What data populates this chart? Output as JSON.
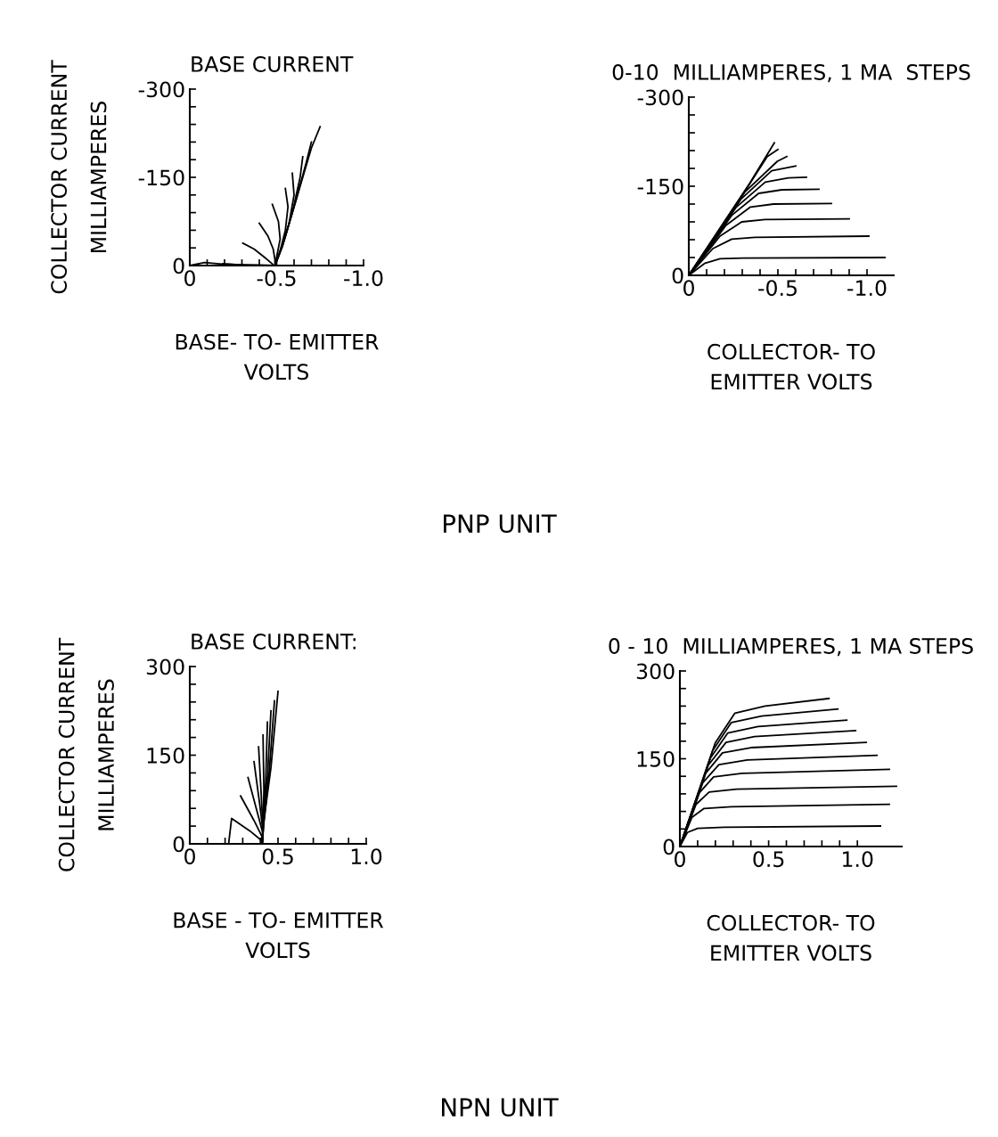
{
  "chart_data": [
    {
      "type": "line",
      "title": "BASE CURRENT",
      "xlabel": "BASE- TO- EMITTER\nVOLTS",
      "ylabel": "COLLECTOR CURRENT\nMILLIAMPERES",
      "annotations": [
        "PNP UNIT"
      ],
      "xlim": [
        0,
        -1
      ],
      "ylim": [
        0,
        -300
      ],
      "xticks": [
        0,
        {
          "value": -0.1,
          "label": null
        },
        {
          "value": -0.2,
          "label": null
        },
        {
          "value": -0.3,
          "label": null
        },
        {
          "value": -0.4,
          "label": null
        },
        -0.5,
        {
          "value": -0.6,
          "label": null
        },
        {
          "value": -0.7,
          "label": null
        },
        {
          "value": -0.8,
          "label": null
        },
        {
          "value": -0.9,
          "label": null
        },
        {
          "value": -1,
          "label": "-1.0"
        }
      ],
      "yticks": [
        0,
        {
          "value": -30,
          "label": null
        },
        {
          "value": -60,
          "label": null
        },
        {
          "value": -90,
          "label": null
        },
        {
          "value": -120,
          "label": null
        },
        -150,
        {
          "value": -180,
          "label": null
        },
        {
          "value": -210,
          "label": null
        },
        {
          "value": -240,
          "label": null
        },
        {
          "value": -270,
          "label": null
        },
        -300
      ],
      "marker": "none",
      "line_style": "solid",
      "grid": false,
      "series": [
        {
          "color": "#000000",
          "x": [
            0,
            -0.085,
            -0.2,
            -0.48
          ],
          "values": [
            0,
            -5,
            -2,
            0
          ]
        },
        {
          "color": "#000000",
          "x": [
            -0.19,
            -0.3,
            -0.48
          ],
          "values": [
            -3,
            -1,
            0
          ]
        },
        {
          "color": "#000000",
          "x": [
            -0.305,
            -0.37,
            -0.43,
            -0.47,
            -0.485
          ],
          "values": [
            -38,
            -28,
            -14,
            -4,
            0
          ]
        },
        {
          "color": "#000000",
          "x": [
            -0.4,
            -0.45,
            -0.48,
            -0.49,
            -0.49
          ],
          "values": [
            -72,
            -50,
            -28,
            -10,
            0
          ]
        },
        {
          "color": "#000000",
          "x": [
            -0.475,
            -0.51,
            -0.52,
            -0.5,
            -0.49
          ],
          "values": [
            -104,
            -75,
            -45,
            -15,
            0
          ]
        },
        {
          "color": "#000000",
          "x": [
            -0.55,
            -0.565,
            -0.55,
            -0.52,
            -0.49
          ],
          "values": [
            -131,
            -100,
            -60,
            -25,
            0
          ]
        },
        {
          "color": "#000000",
          "x": [
            -0.59,
            -0.6,
            -0.57,
            -0.53,
            -0.49
          ],
          "values": [
            -157,
            -120,
            -70,
            -30,
            0
          ]
        },
        {
          "color": "#000000",
          "x": [
            -0.65,
            -0.635,
            -0.59,
            -0.535,
            -0.49
          ],
          "values": [
            -185,
            -150,
            -90,
            -35,
            0
          ]
        },
        {
          "color": "#000000",
          "x": [
            -0.7,
            -0.67,
            -0.61,
            -0.54,
            -0.49
          ],
          "values": [
            -210,
            -175,
            -110,
            -40,
            0
          ]
        },
        {
          "color": "#000000",
          "x": [
            -0.75,
            -0.7,
            -0.63,
            -0.55,
            -0.49
          ],
          "values": [
            -236,
            -200,
            -130,
            -50,
            0
          ]
        }
      ]
    },
    {
      "type": "line",
      "title": "0-10  MILLIAMPERES, 1 MA  STEPS",
      "xlabel": "COLLECTOR- TO\nEMITTER VOLTS",
      "xlim": [
        0,
        -1.15
      ],
      "ylim": [
        0,
        -300
      ],
      "xticks": [
        0,
        {
          "value": -0.1,
          "label": null
        },
        {
          "value": -0.2,
          "label": null
        },
        {
          "value": -0.3,
          "label": null
        },
        {
          "value": -0.4,
          "label": null
        },
        -0.5,
        {
          "value": -0.6,
          "label": null
        },
        {
          "value": -0.7,
          "label": null
        },
        {
          "value": -0.8,
          "label": null
        },
        {
          "value": -0.9,
          "label": null
        },
        {
          "value": -1,
          "label": "-1.0"
        }
      ],
      "yticks": [
        0,
        {
          "value": -30,
          "label": null
        },
        {
          "value": -60,
          "label": null
        },
        {
          "value": -90,
          "label": null
        },
        {
          "value": -120,
          "label": null
        },
        -150,
        {
          "value": -180,
          "label": null
        },
        {
          "value": -210,
          "label": null
        },
        {
          "value": -240,
          "label": null
        },
        {
          "value": -270,
          "label": null
        },
        -300
      ],
      "marker": "none",
      "line_style": "solid",
      "grid": false,
      "series": [
        {
          "color": "#000000",
          "x": [
            0,
            -0.088,
            -0.175,
            -0.305,
            -1.1
          ],
          "values": [
            0,
            -20,
            -28,
            -29,
            -30
          ]
        },
        {
          "color": "#000000",
          "x": [
            0,
            -0.135,
            -0.241,
            -0.371,
            -1.01
          ],
          "values": [
            0,
            -45,
            -61,
            -64,
            -66
          ]
        },
        {
          "color": "#000000",
          "x": [
            0,
            -0.175,
            -0.297,
            -0.427,
            -0.9
          ],
          "values": [
            0,
            -66,
            -90,
            -94,
            -95
          ]
        },
        {
          "color": "#000000",
          "x": [
            0,
            -0.208,
            -0.346,
            -0.476,
            -0.8
          ],
          "values": [
            0,
            -84,
            -115,
            -120,
            -121
          ]
        },
        {
          "color": "#000000",
          "x": [
            0,
            -0.241,
            -0.392,
            -0.522,
            -0.73
          ],
          "values": [
            0,
            -101,
            -138,
            -144,
            -145
          ]
        },
        {
          "color": "#000000",
          "x": [
            0,
            -0.267,
            -0.429,
            -0.559,
            -0.66
          ],
          "values": [
            0,
            -115,
            -157,
            -164,
            -165
          ]
        },
        {
          "color": "#000000",
          "x": [
            0,
            -0.292,
            -0.465,
            -0.6
          ],
          "values": [
            0,
            -128,
            -176,
            -184
          ]
        },
        {
          "color": "#000000",
          "x": [
            0,
            -0.314,
            -0.497,
            -0.55
          ],
          "values": [
            0,
            -140,
            -192,
            -200
          ]
        },
        {
          "color": "#000000",
          "x": [
            0,
            -0.329,
            -0.44,
            -0.5
          ],
          "values": [
            0,
            -148,
            -200,
            -212
          ]
        },
        {
          "color": "#000000",
          "x": [
            0,
            -0.344,
            -0.48
          ],
          "values": [
            0,
            -156,
            -223
          ]
        }
      ]
    },
    {
      "type": "line",
      "title": "BASE CURRENT:",
      "xlabel": "BASE - TO- EMITTER\nVOLTS",
      "ylabel": "COLLECTOR CURRENT\nMILLIAMPERES",
      "annotations": [
        "NPN UNIT"
      ],
      "xlim": [
        0,
        1
      ],
      "ylim": [
        0,
        300
      ],
      "xticks": [
        0,
        {
          "value": 0.1,
          "label": null
        },
        {
          "value": 0.2,
          "label": null
        },
        {
          "value": 0.3,
          "label": null
        },
        {
          "value": 0.4,
          "label": null
        },
        0.5,
        {
          "value": 0.6,
          "label": null
        },
        {
          "value": 0.7,
          "label": null
        },
        {
          "value": 0.8,
          "label": null
        },
        {
          "value": 0.9,
          "label": null
        },
        {
          "value": 1,
          "label": "1.0"
        }
      ],
      "yticks": [
        0,
        {
          "value": 30,
          "label": null
        },
        {
          "value": 60,
          "label": null
        },
        {
          "value": 90,
          "label": null
        },
        {
          "value": 120,
          "label": null
        },
        150,
        {
          "value": 180,
          "label": null
        },
        {
          "value": 210,
          "label": null
        },
        {
          "value": 240,
          "label": null
        },
        {
          "value": 270,
          "label": null
        },
        300
      ],
      "marker": "none",
      "line_style": "solid",
      "grid": false,
      "series": [
        {
          "color": "#000000",
          "x": [
            0,
            0.22,
            0.237,
            0.34,
            0.405,
            0.41
          ],
          "values": [
            0,
            0,
            43,
            22,
            6,
            0
          ]
        },
        {
          "color": "#000000",
          "x": [
            0.288,
            0.363,
            0.41,
            0.41
          ],
          "values": [
            81,
            40,
            12,
            0
          ]
        },
        {
          "color": "#000000",
          "x": [
            0.33,
            0.38,
            0.415,
            0.41
          ],
          "values": [
            112,
            56,
            17,
            0
          ]
        },
        {
          "color": "#000000",
          "x": [
            0.364,
            0.395,
            0.415,
            0.41
          ],
          "values": [
            139,
            70,
            21,
            0
          ]
        },
        {
          "color": "#000000",
          "x": [
            0.39,
            0.405,
            0.415,
            0.41
          ],
          "values": [
            164,
            82,
            25,
            0
          ]
        },
        {
          "color": "#000000",
          "x": [
            0.415,
            0.42,
            0.415,
            0.41
          ],
          "values": [
            184,
            92,
            28,
            0
          ]
        },
        {
          "color": "#000000",
          "x": [
            0.44,
            0.43,
            0.415,
            0.41
          ],
          "values": [
            206,
            103,
            31,
            0
          ]
        },
        {
          "color": "#000000",
          "x": [
            0.46,
            0.44,
            0.415,
            0.41
          ],
          "values": [
            225,
            112,
            34,
            0
          ]
        },
        {
          "color": "#000000",
          "x": [
            0.48,
            0.45,
            0.42,
            0.41
          ],
          "values": [
            242,
            121,
            36,
            0
          ]
        },
        {
          "color": "#000000",
          "x": [
            0.5,
            0.46,
            0.42,
            0.41
          ],
          "values": [
            258,
            129,
            39,
            0
          ]
        }
      ]
    },
    {
      "type": "line",
      "title": "0 - 10  MILLIAMPERES, 1 MA STEPS",
      "xlabel": "COLLECTOR- TO\nEMITTER VOLTS",
      "xlim": [
        0,
        1.25
      ],
      "ylim": [
        0,
        300
      ],
      "xticks": [
        0,
        {
          "value": 0.1,
          "label": null
        },
        {
          "value": 0.2,
          "label": null
        },
        {
          "value": 0.3,
          "label": null
        },
        {
          "value": 0.4,
          "label": null
        },
        0.5,
        {
          "value": 0.6,
          "label": null
        },
        {
          "value": 0.7,
          "label": null
        },
        {
          "value": 0.8,
          "label": null
        },
        {
          "value": 0.9,
          "label": null
        },
        {
          "value": 1,
          "label": "1.0"
        }
      ],
      "yticks": [
        0,
        {
          "value": 30,
          "label": null
        },
        {
          "value": 60,
          "label": null
        },
        {
          "value": 90,
          "label": null
        },
        {
          "value": 120,
          "label": null
        },
        150,
        {
          "value": 180,
          "label": null
        },
        {
          "value": 210,
          "label": null
        },
        {
          "value": 240,
          "label": null
        },
        {
          "value": 270,
          "label": null
        },
        300
      ],
      "marker": "none",
      "line_style": "solid",
      "grid": false,
      "series": [
        {
          "color": "#000000",
          "x": [
            0,
            0.042,
            0.1,
            0.25,
            1.13
          ],
          "values": [
            0,
            24,
            31,
            33,
            35
          ]
        },
        {
          "color": "#000000",
          "x": [
            0,
            0.068,
            0.136,
            0.29,
            1.18
          ],
          "values": [
            0,
            50,
            65,
            68,
            72
          ]
        },
        {
          "color": "#000000",
          "x": [
            0,
            0.091,
            0.165,
            0.32,
            1.22
          ],
          "values": [
            0,
            72,
            93,
            98,
            103
          ]
        },
        {
          "color": "#000000",
          "x": [
            0,
            0.11,
            0.19,
            0.35,
            1.18
          ],
          "values": [
            0,
            92,
            119,
            125,
            132
          ]
        },
        {
          "color": "#000000",
          "x": [
            0,
            0.129,
            0.22,
            0.38,
            1.11
          ],
          "values": [
            0,
            109,
            140,
            148,
            156
          ]
        },
        {
          "color": "#000000",
          "x": [
            0,
            0.145,
            0.24,
            0.4,
            1.05
          ],
          "values": [
            0,
            125,
            160,
            169,
            178
          ]
        },
        {
          "color": "#000000",
          "x": [
            0,
            0.16,
            0.26,
            0.42,
            0.99
          ],
          "values": [
            0,
            139,
            178,
            188,
            198
          ]
        },
        {
          "color": "#000000",
          "x": [
            0,
            0.172,
            0.27,
            0.44,
            0.94
          ],
          "values": [
            0,
            151,
            194,
            205,
            216
          ]
        },
        {
          "color": "#000000",
          "x": [
            0,
            0.185,
            0.29,
            0.46,
            0.89
          ],
          "values": [
            0,
            164,
            212,
            223,
            235
          ]
        },
        {
          "color": "#000000",
          "x": [
            0,
            0.199,
            0.31,
            0.48,
            0.84
          ],
          "values": [
            0,
            177,
            228,
            240,
            253
          ]
        }
      ]
    }
  ]
}
